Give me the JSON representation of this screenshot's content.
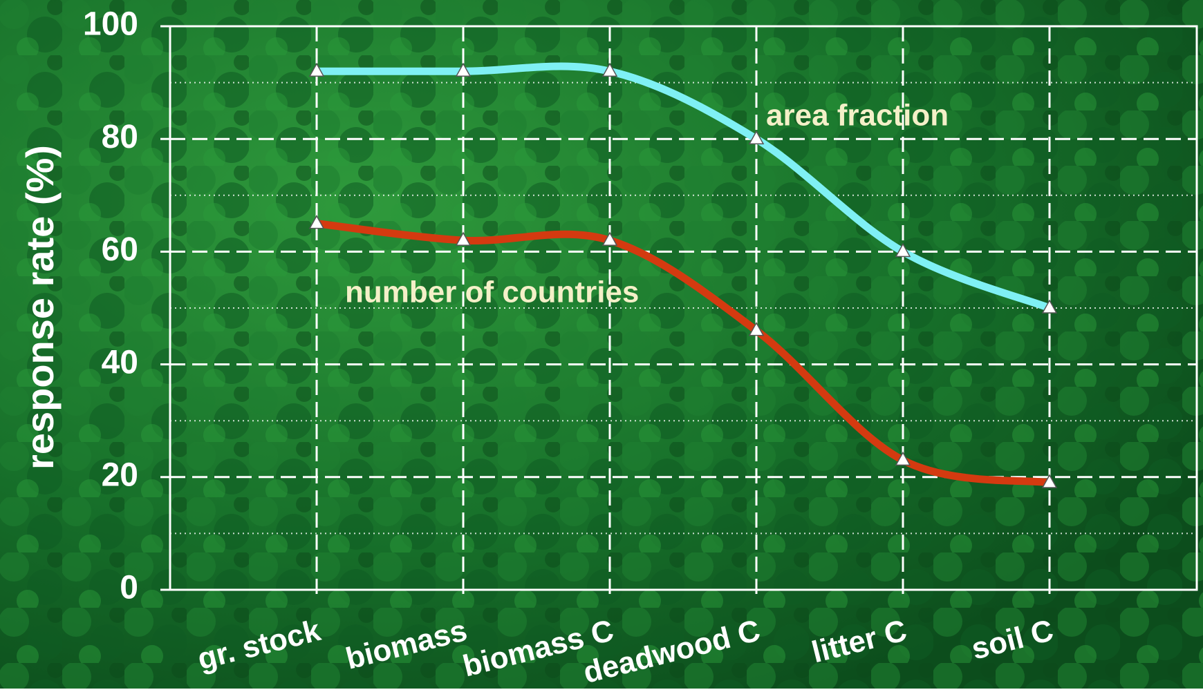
{
  "chart_data": {
    "type": "line",
    "y_label": "response rate (%)",
    "categories": [
      "gr. stock",
      "biomass",
      "biomass C",
      "deadwood C",
      "litter C",
      "soil C"
    ],
    "series": [
      {
        "name": "area fraction",
        "color": "#7ff0f4",
        "values": [
          92,
          92,
          92,
          80,
          60,
          50
        ]
      },
      {
        "name": "number of countries",
        "color": "#d43a10",
        "values": [
          65,
          62,
          62,
          46,
          23,
          19
        ]
      }
    ],
    "ylim": [
      0,
      100
    ],
    "yticks": [
      0,
      20,
      40,
      60,
      80,
      100
    ],
    "grid": true
  }
}
